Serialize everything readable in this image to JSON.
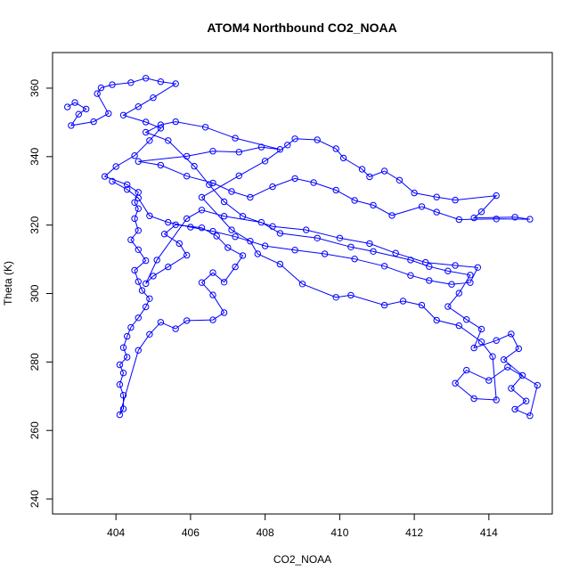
{
  "chart_data": {
    "type": "scatter",
    "title": "ATOM4 Northbound CO2_NOAA",
    "xlabel": "CO2_NOAA",
    "ylabel": "Theta (K)",
    "xlim": [
      402.3,
      415.7
    ],
    "ylim": [
      235.6,
      370.4
    ],
    "x_ticks": [
      404,
      406,
      408,
      410,
      412,
      414
    ],
    "y_ticks": [
      240,
      260,
      280,
      300,
      320,
      340,
      360
    ],
    "grid": false,
    "legend": "none",
    "connected": true,
    "marker": "open-circle",
    "color": "#0000ff",
    "series": [
      {
        "name": "",
        "points": [
          [
            402.7,
            354.5
          ],
          [
            402.9,
            355.8
          ],
          [
            403.2,
            353.9
          ],
          [
            403.0,
            352.4
          ],
          [
            402.8,
            349.1
          ],
          [
            403.4,
            350.2
          ],
          [
            403.8,
            352.6
          ],
          [
            403.5,
            358.4
          ],
          [
            403.6,
            360.1
          ],
          [
            403.9,
            361.0
          ],
          [
            404.4,
            361.6
          ],
          [
            404.8,
            362.9
          ],
          [
            405.2,
            361.9
          ],
          [
            405.6,
            361.3
          ],
          [
            405.0,
            357.2
          ],
          [
            404.6,
            354.6
          ],
          [
            404.2,
            352.1
          ],
          [
            404.8,
            350.1
          ],
          [
            405.2,
            348.3
          ],
          [
            404.9,
            344.7
          ],
          [
            404.5,
            340.3
          ],
          [
            404.0,
            337.1
          ],
          [
            403.7,
            334.2
          ],
          [
            404.3,
            331.8
          ],
          [
            404.6,
            329.6
          ],
          [
            404.5,
            326.6
          ],
          [
            404.6,
            324.8
          ],
          [
            404.5,
            321.9
          ],
          [
            404.6,
            318.4
          ],
          [
            404.4,
            315.7
          ],
          [
            404.6,
            312.8
          ],
          [
            404.8,
            309.6
          ],
          [
            404.5,
            306.8
          ],
          [
            404.6,
            303.5
          ],
          [
            404.7,
            300.9
          ],
          [
            404.9,
            298.5
          ],
          [
            404.8,
            296.1
          ],
          [
            404.6,
            292.9
          ],
          [
            404.4,
            290.1
          ],
          [
            404.3,
            287.5
          ],
          [
            404.2,
            284.2
          ],
          [
            404.3,
            281.4
          ],
          [
            404.1,
            279.2
          ],
          [
            404.2,
            276.8
          ],
          [
            404.1,
            273.4
          ],
          [
            404.2,
            270.3
          ],
          [
            404.2,
            266.3
          ],
          [
            404.1,
            264.6
          ],
          [
            404.6,
            283.4
          ],
          [
            404.9,
            288.1
          ],
          [
            405.2,
            291.6
          ],
          [
            405.6,
            289.7
          ],
          [
            405.9,
            292.1
          ],
          [
            406.6,
            292.3
          ],
          [
            406.9,
            294.4
          ],
          [
            406.6,
            299.6
          ],
          [
            406.3,
            303.2
          ],
          [
            406.6,
            306.1
          ],
          [
            406.9,
            303.3
          ],
          [
            407.2,
            307.8
          ],
          [
            407.4,
            311.1
          ],
          [
            407.0,
            313.4
          ],
          [
            406.7,
            316.8
          ],
          [
            406.3,
            319.2
          ],
          [
            405.6,
            320.1
          ],
          [
            405.3,
            317.4
          ],
          [
            405.7,
            314.6
          ],
          [
            405.9,
            311.2
          ],
          [
            405.4,
            307.8
          ],
          [
            405.0,
            305.1
          ],
          [
            404.8,
            302.9
          ],
          [
            405.1,
            309.8
          ],
          [
            405.9,
            321.9
          ],
          [
            406.3,
            324.4
          ],
          [
            406.9,
            322.6
          ],
          [
            407.9,
            320.8
          ],
          [
            408.4,
            317.6
          ],
          [
            409.4,
            316.2
          ],
          [
            410.3,
            313.6
          ],
          [
            410.9,
            312.3
          ],
          [
            411.9,
            309.8
          ],
          [
            412.4,
            307.9
          ],
          [
            412.9,
            306.6
          ],
          [
            413.5,
            305.4
          ],
          [
            413.2,
            300.1
          ],
          [
            412.9,
            296.2
          ],
          [
            413.4,
            292.4
          ],
          [
            413.8,
            289.6
          ],
          [
            413.6,
            284.1
          ],
          [
            414.2,
            286.3
          ],
          [
            414.6,
            288.2
          ],
          [
            414.8,
            283.9
          ],
          [
            414.4,
            280.7
          ],
          [
            414.9,
            276.1
          ],
          [
            414.6,
            272.3
          ],
          [
            415.0,
            268.6
          ],
          [
            414.7,
            266.2
          ],
          [
            415.1,
            264.3
          ],
          [
            415.3,
            273.2
          ],
          [
            414.5,
            278.5
          ],
          [
            414.0,
            274.6
          ],
          [
            413.4,
            277.6
          ],
          [
            413.1,
            273.8
          ],
          [
            413.6,
            269.3
          ],
          [
            414.2,
            268.9
          ],
          [
            414.1,
            281.6
          ],
          [
            413.8,
            285.9
          ],
          [
            413.2,
            290.6
          ],
          [
            412.6,
            292.2
          ],
          [
            412.2,
            296.6
          ],
          [
            411.7,
            297.8
          ],
          [
            411.2,
            296.6
          ],
          [
            410.3,
            299.5
          ],
          [
            409.9,
            298.9
          ],
          [
            409.0,
            302.8
          ],
          [
            408.4,
            308.6
          ],
          [
            407.8,
            311.6
          ],
          [
            407.6,
            315.3
          ],
          [
            407.1,
            318.6
          ],
          [
            406.3,
            328.1
          ],
          [
            407.3,
            334.4
          ],
          [
            408.0,
            338.7
          ],
          [
            408.6,
            343.4
          ],
          [
            408.8,
            345.2
          ],
          [
            409.4,
            344.9
          ],
          [
            409.9,
            342.3
          ],
          [
            410.1,
            339.6
          ],
          [
            410.6,
            336.3
          ],
          [
            410.8,
            334.1
          ],
          [
            411.2,
            335.8
          ],
          [
            411.6,
            333.1
          ],
          [
            412.0,
            329.4
          ],
          [
            412.6,
            328.2
          ],
          [
            413.1,
            327.3
          ],
          [
            414.2,
            328.6
          ],
          [
            413.8,
            323.9
          ],
          [
            413.6,
            322.1
          ],
          [
            414.7,
            322.3
          ],
          [
            415.1,
            321.7
          ],
          [
            414.2,
            321.8
          ],
          [
            413.2,
            321.6
          ],
          [
            412.6,
            323.8
          ],
          [
            412.2,
            325.4
          ],
          [
            411.4,
            322.8
          ],
          [
            410.9,
            325.8
          ],
          [
            410.4,
            327.2
          ],
          [
            409.9,
            330.2
          ],
          [
            409.3,
            332.4
          ],
          [
            408.8,
            333.6
          ],
          [
            408.2,
            331.2
          ],
          [
            407.6,
            328.1
          ],
          [
            407.1,
            329.8
          ],
          [
            406.6,
            332.3
          ],
          [
            405.9,
            334.3
          ],
          [
            405.2,
            337.5
          ],
          [
            404.6,
            338.6
          ],
          [
            405.9,
            340.1
          ],
          [
            406.6,
            341.6
          ],
          [
            407.3,
            341.3
          ],
          [
            407.9,
            342.8
          ],
          [
            408.4,
            342.1
          ],
          [
            407.2,
            345.4
          ],
          [
            406.4,
            348.6
          ],
          [
            405.6,
            350.2
          ],
          [
            405.2,
            349.3
          ],
          [
            404.8,
            347.1
          ],
          [
            405.4,
            344.7
          ],
          [
            406.1,
            337.2
          ],
          [
            406.5,
            331.8
          ],
          [
            406.9,
            326.8
          ],
          [
            407.4,
            322.6
          ],
          [
            408.2,
            319.6
          ],
          [
            409.1,
            318.6
          ],
          [
            410.0,
            316.2
          ],
          [
            410.8,
            314.6
          ],
          [
            411.5,
            311.8
          ],
          [
            412.3,
            309.1
          ],
          [
            413.1,
            308.2
          ],
          [
            413.7,
            307.6
          ],
          [
            413.5,
            303.2
          ],
          [
            413.0,
            302.7
          ],
          [
            412.4,
            303.8
          ],
          [
            411.9,
            305.3
          ],
          [
            411.2,
            308.0
          ],
          [
            410.4,
            310.1
          ],
          [
            409.6,
            311.6
          ],
          [
            408.8,
            312.7
          ],
          [
            408.0,
            313.9
          ],
          [
            407.2,
            316.6
          ],
          [
            406.6,
            318.2
          ],
          [
            406.0,
            319.4
          ],
          [
            405.4,
            320.8
          ],
          [
            404.9,
            322.7
          ],
          [
            404.6,
            327.9
          ],
          [
            404.3,
            330.4
          ],
          [
            403.9,
            332.8
          ]
        ]
      }
    ]
  }
}
